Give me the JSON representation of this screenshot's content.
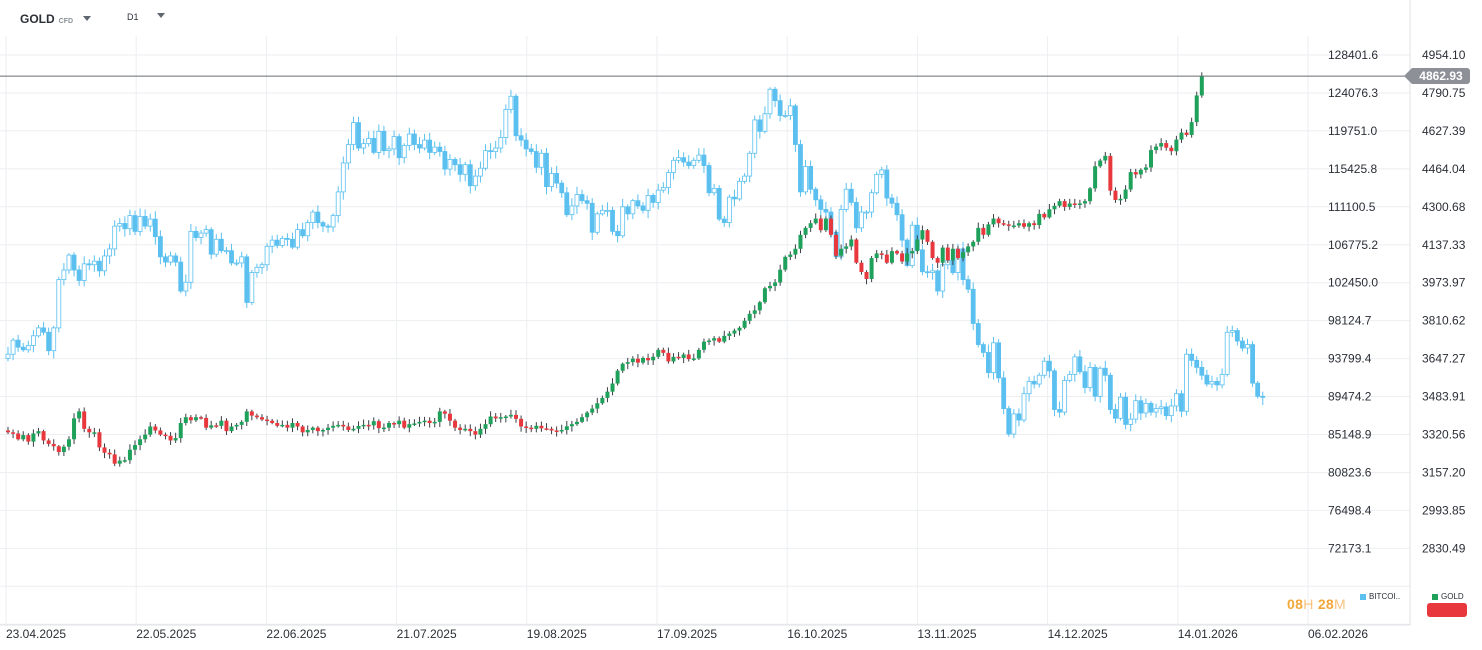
{
  "toolbar": {
    "symbol": "GOLD",
    "symbol_type": "CFD",
    "timeframe": "D1"
  },
  "last_price": "4862.93",
  "countdown": {
    "hours": "08",
    "hours_unit": "H",
    "minutes": "28",
    "minutes_unit": "M"
  },
  "legend": [
    {
      "label": "BITCOI..",
      "color": "#5bc0f0"
    },
    {
      "label": "GOLD",
      "color": "#1ea15a"
    }
  ],
  "colors": {
    "up": "#1ea15a",
    "down": "#e8383d",
    "overlay": "#5bc0f0",
    "grid": "#eceef1",
    "price_line": "#6a6e73"
  },
  "chart_data": {
    "type": "candlestick",
    "x_labels": [
      "23.04.2025",
      "22.05.2025",
      "22.06.2025",
      "21.07.2025",
      "19.08.2025",
      "17.09.2025",
      "16.10.2025",
      "13.11.2025",
      "14.12.2025",
      "14.01.2026",
      "06.02.2026"
    ],
    "left_axis_ticks": [
      "128401.6",
      "124076.3",
      "119751.0",
      "115425.8",
      "111100.5",
      "106775.2",
      "102450.0",
      "98124.7",
      "93799.4",
      "89474.2",
      "85148.9",
      "80823.6",
      "76498.4",
      "72173.1"
    ],
    "right_axis_ticks": [
      "4954.10",
      "4790.75",
      "4627.39",
      "4464.04",
      "4300.68",
      "4137.33",
      "3973.97",
      "3810.62",
      "3647.27",
      "3483.91",
      "3320.56",
      "3157.20",
      "2993.85",
      "2830.49"
    ],
    "left_range": [
      72173.1,
      128401.6
    ],
    "right_range": [
      2830.49,
      4954.1
    ],
    "grid": true,
    "series": [
      {
        "name": "GOLD",
        "axis": "right",
        "kind": "candles",
        "close": [
          3330,
          3325,
          3300,
          3318,
          3290,
          3325,
          3335,
          3295,
          3280,
          3270,
          3245,
          3268,
          3300,
          3390,
          3420,
          3345,
          3330,
          3330,
          3265,
          3242,
          3235,
          3195,
          3208,
          3210,
          3255,
          3275,
          3300,
          3320,
          3355,
          3338,
          3320,
          3315,
          3295,
          3305,
          3370,
          3395,
          3382,
          3395,
          3392,
          3350,
          3360,
          3358,
          3380,
          3335,
          3355,
          3362,
          3375,
          3420,
          3402,
          3395,
          3385,
          3380,
          3370,
          3358,
          3362,
          3350,
          3370,
          3355,
          3330,
          3340,
          3350,
          3335,
          3340,
          3350,
          3358,
          3362,
          3355,
          3340,
          3345,
          3357,
          3362,
          3360,
          3378,
          3348,
          3350,
          3370,
          3365,
          3380,
          3350,
          3365,
          3368,
          3375,
          3380,
          3370,
          3375,
          3420,
          3410,
          3380,
          3350,
          3340,
          3345,
          3335,
          3320,
          3345,
          3365,
          3398,
          3390,
          3395,
          3398,
          3405,
          3388,
          3355,
          3350,
          3345,
          3358,
          3347,
          3345,
          3338,
          3335,
          3340,
          3356,
          3365,
          3375,
          3395,
          3415,
          3432,
          3455,
          3478,
          3505,
          3540,
          3595,
          3625,
          3632,
          3647,
          3630,
          3650,
          3640,
          3655,
          3685,
          3672,
          3635,
          3655,
          3650,
          3665,
          3645,
          3648,
          3685,
          3720,
          3725,
          3735,
          3720,
          3745,
          3755,
          3768,
          3780,
          3810,
          3840,
          3855,
          3890,
          3950,
          3960,
          3975,
          4030,
          4085,
          4095,
          4120,
          4180,
          4210,
          4230,
          4250,
          4200,
          4250,
          4180,
          4090,
          4120,
          4130,
          4160,
          4060,
          4020,
          3990,
          4080,
          4100,
          4095,
          4060,
          4110,
          4100,
          4065,
          4100,
          4110,
          4160,
          4200,
          4150,
          4080,
          4060,
          4125,
          4070,
          4120,
          4080,
          4105,
          4130,
          4150,
          4210,
          4180,
          4225,
          4250,
          4230,
          4225,
          4220,
          4220,
          4230,
          4215,
          4230,
          4222,
          4270,
          4255,
          4290,
          4305,
          4325,
          4300,
          4315,
          4310,
          4315,
          4325,
          4380,
          4475,
          4500,
          4520,
          4370,
          4330,
          4335,
          4375,
          4450,
          4440,
          4460,
          4470,
          4545,
          4560,
          4575,
          4555,
          4540,
          4590,
          4620,
          4610,
          4665,
          4780,
          4862.93
        ]
      },
      {
        "name": "BITCOI..",
        "axis": "left",
        "kind": "candles-outline",
        "close": [
          94300,
          95900,
          95100,
          94800,
          95300,
          96400,
          97300,
          96800,
          94700,
          97300,
          102800,
          103900,
          105600,
          103900,
          102700,
          104600,
          104500,
          104900,
          103800,
          105500,
          106300,
          108900,
          109200,
          108600,
          110100,
          108300,
          110000,
          108900,
          109700,
          107700,
          105400,
          104800,
          105500,
          104800,
          101500,
          102500,
          108300,
          107600,
          108100,
          108500,
          105700,
          107400,
          106100,
          106100,
          104700,
          104700,
          105400,
          100200,
          103600,
          104200,
          104500,
          106600,
          107300,
          106700,
          107500,
          107400,
          106500,
          108500,
          107800,
          109300,
          110500,
          109300,
          108900,
          108800,
          110100,
          112800,
          116100,
          118200,
          120700,
          117800,
          118300,
          118900,
          117300,
          119700,
          117500,
          117700,
          119100,
          116700,
          118100,
          119400,
          118200,
          117800,
          118700,
          117300,
          117900,
          117400,
          115400,
          116500,
          115900,
          114800,
          115900,
          113500,
          114600,
          115500,
          117500,
          117400,
          117800,
          119000,
          122200,
          123700,
          119200,
          118700,
          117700,
          117400,
          115600,
          117200,
          113400,
          114900,
          113800,
          112700,
          110200,
          111200,
          112500,
          111800,
          111500,
          108200,
          110300,
          110700,
          110700,
          108300,
          107800,
          111100,
          110300,
          111800,
          111200,
          110700,
          112400,
          111600,
          113000,
          113300,
          115000,
          116400,
          116700,
          116200,
          115800,
          116400,
          117000,
          115800,
          112700,
          113200,
          109700,
          109300,
          112200,
          112000,
          114000,
          114600,
          117200,
          121000,
          119700,
          121700,
          124500,
          123200,
          121500,
          121500,
          122600,
          118200,
          112800,
          115700,
          113100,
          111900,
          110800,
          110500,
          108200,
          105400,
          110800,
          113100,
          111600,
          108700,
          110500,
          110500,
          112700,
          114800,
          115300,
          112100,
          111500,
          110200,
          107300,
          104400,
          109000,
          106200,
          103700,
          103600,
          103800,
          101500,
          104500,
          105000,
          103600,
          106300,
          102800,
          101700,
          97800,
          95400,
          94500,
          92200,
          95600,
          91600,
          88100,
          85200,
          87500,
          86800,
          89800,
          91200,
          90900,
          91900,
          93500,
          92400,
          88000,
          87700,
          91300,
          92000,
          94000,
          92300,
          90500,
          92800,
          89500,
          92700,
          91900,
          88000,
          87000,
          89400,
          86300,
          86900,
          89000,
          87600,
          88700,
          87700,
          88100,
          88300,
          87300,
          88400,
          89800,
          87800,
          94300,
          93600,
          92800,
          91900,
          90900,
          91200,
          90800,
          92000,
          96800,
          97000,
          95800,
          95000,
          95400,
          91000,
          89500,
          89400
        ]
      }
    ]
  }
}
